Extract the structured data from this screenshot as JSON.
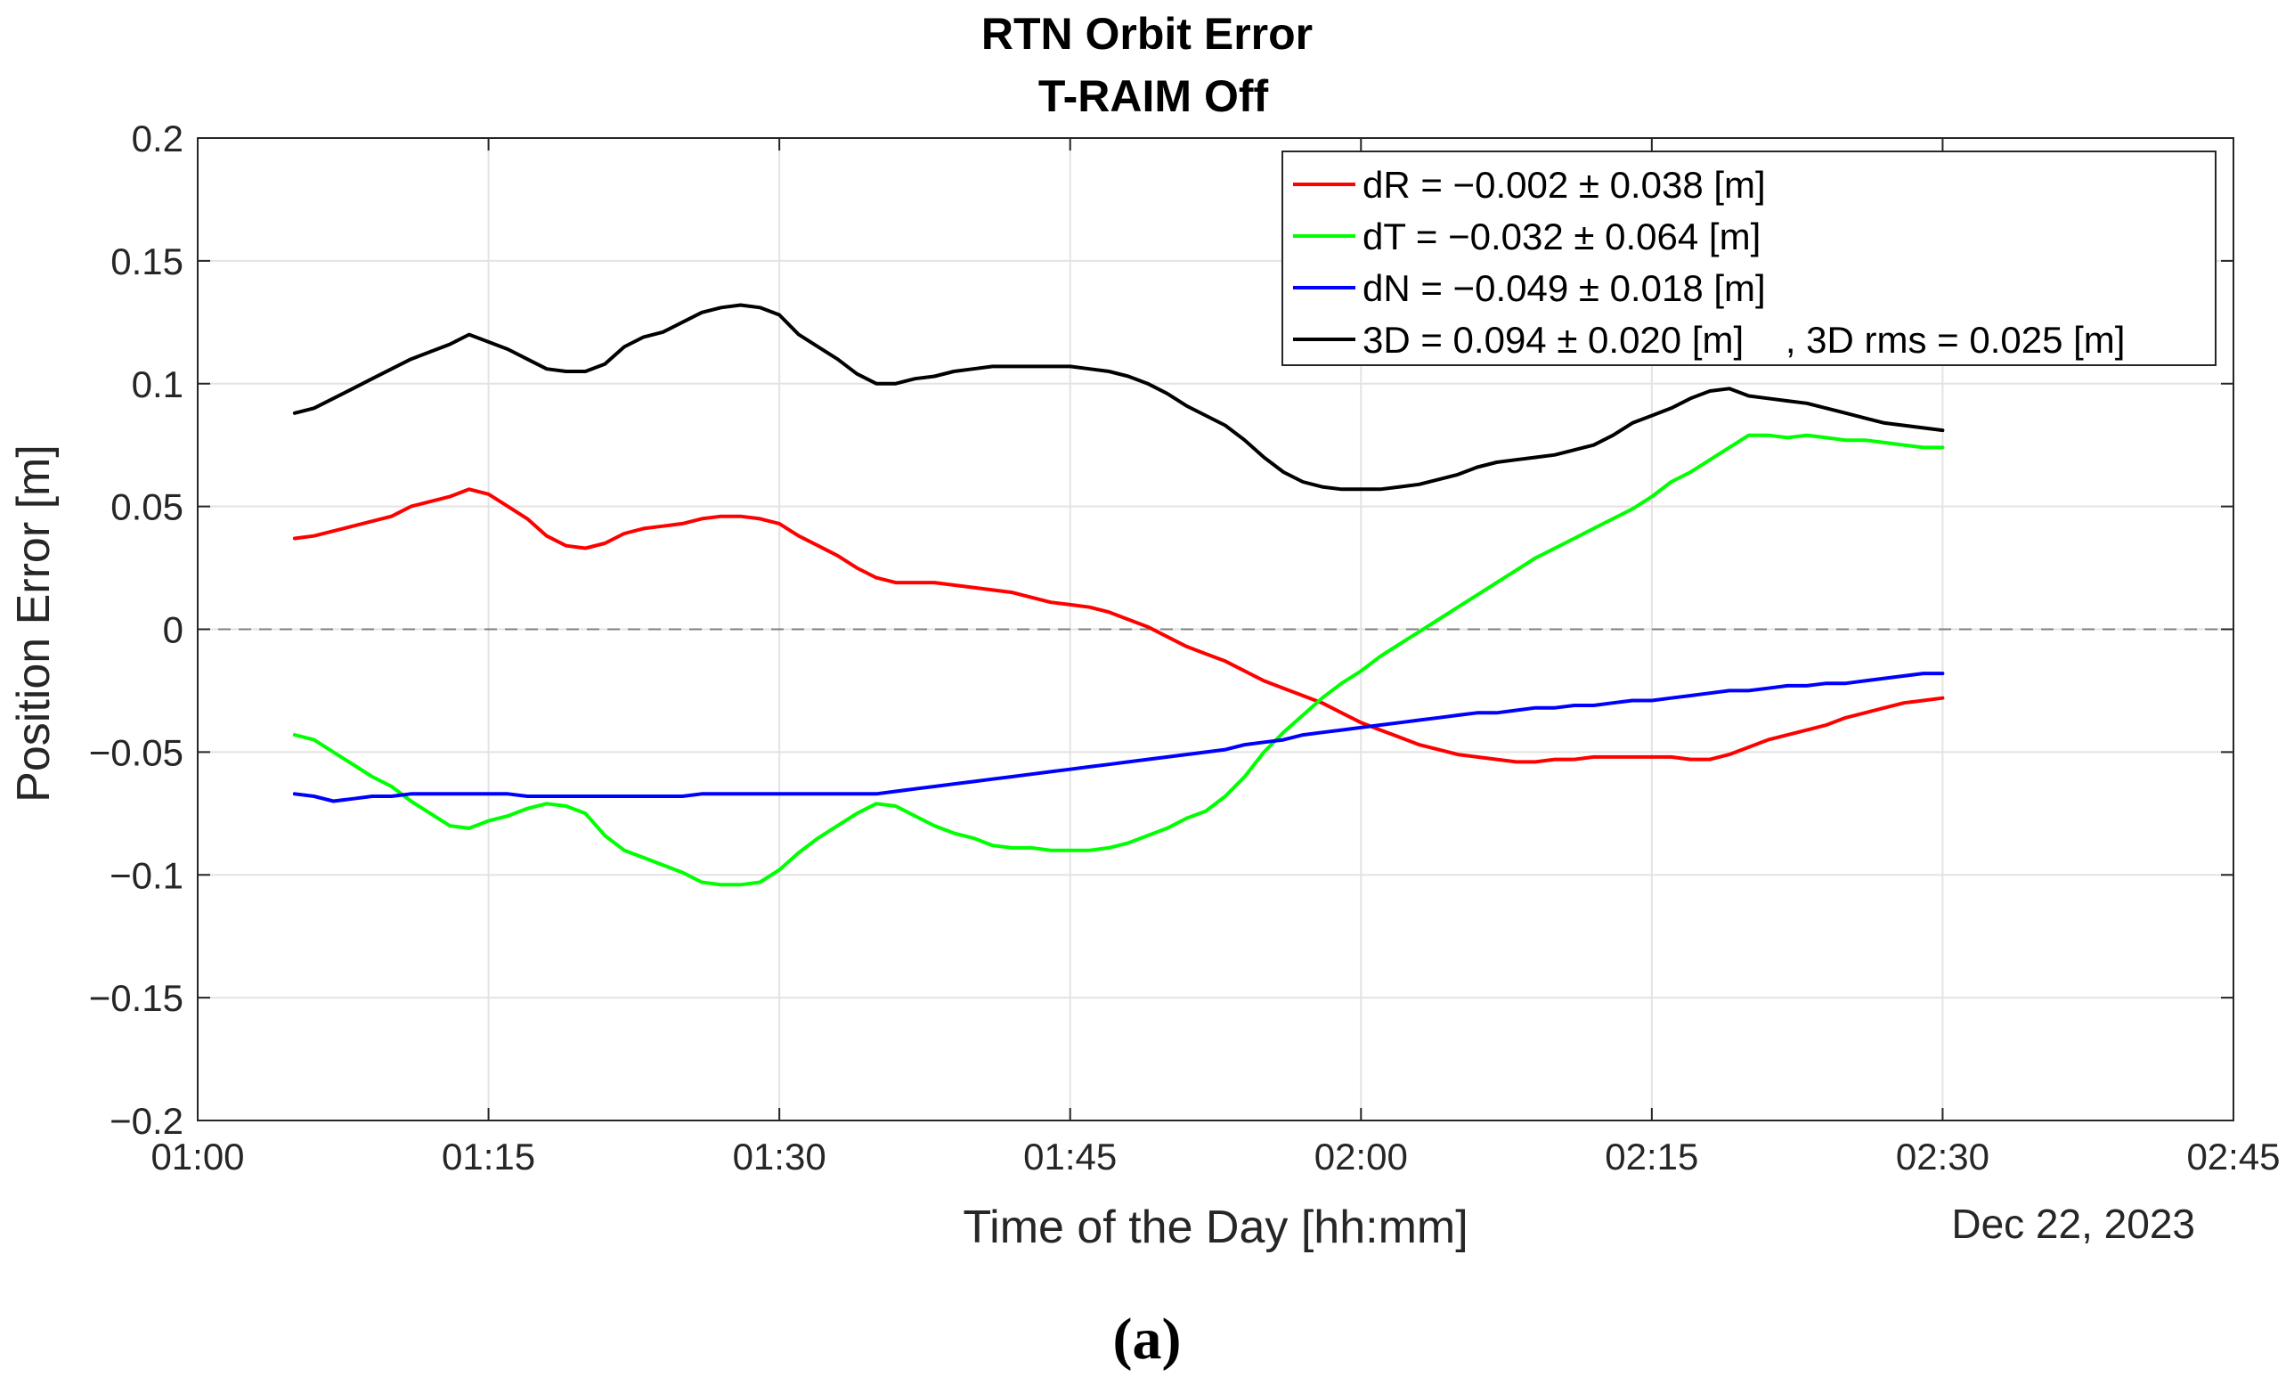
{
  "chart_data": {
    "type": "line",
    "title": "RTN Orbit Error",
    "subtitle": "T-RAIM Off",
    "xlabel": "Time of the Day [hh:mm]",
    "ylabel": "Position Error [m]",
    "date_label": "Dec 22, 2023",
    "caption": "(a)",
    "xlim": [
      "01:00",
      "02:45"
    ],
    "ylim": [
      -0.2,
      0.2
    ],
    "x_ticks": [
      "01:00",
      "01:15",
      "01:30",
      "01:45",
      "02:00",
      "02:15",
      "02:30",
      "02:45"
    ],
    "y_ticks": [
      "−0.2",
      "−0.15",
      "−0.1",
      "−0.05",
      "0",
      "0.05",
      "0.1",
      "0.15",
      "0.2"
    ],
    "y_tick_values": [
      -0.2,
      -0.15,
      -0.1,
      -0.05,
      0,
      0.05,
      0.1,
      0.15,
      0.2
    ],
    "grid": true,
    "zero_line": "dashed",
    "legend_position": "top-right",
    "x": [
      "01:05",
      "01:06",
      "01:07",
      "01:08",
      "01:09",
      "01:10",
      "01:11",
      "01:12",
      "01:13",
      "01:14",
      "01:15",
      "01:16",
      "01:17",
      "01:18",
      "01:19",
      "01:20",
      "01:21",
      "01:22",
      "01:23",
      "01:24",
      "01:25",
      "01:26",
      "01:27",
      "01:28",
      "01:29",
      "01:30",
      "01:31",
      "01:32",
      "01:33",
      "01:34",
      "01:35",
      "01:36",
      "01:37",
      "01:38",
      "01:39",
      "01:40",
      "01:41",
      "01:42",
      "01:43",
      "01:44",
      "01:45",
      "01:46",
      "01:47",
      "01:48",
      "01:49",
      "01:50",
      "01:51",
      "01:52",
      "01:53",
      "01:54",
      "01:55",
      "01:56",
      "01:57",
      "01:58",
      "01:59",
      "02:00",
      "02:01",
      "02:02",
      "02:03",
      "02:04",
      "02:05",
      "02:06",
      "02:07",
      "02:08",
      "02:09",
      "02:10",
      "02:11",
      "02:12",
      "02:13",
      "02:14",
      "02:15",
      "02:16",
      "02:17",
      "02:18",
      "02:19",
      "02:20",
      "02:21",
      "02:22",
      "02:23",
      "02:24",
      "02:25",
      "02:26",
      "02:27",
      "02:28",
      "02:29",
      "02:30"
    ],
    "series": [
      {
        "name": "dR = −0.002 ± 0.038 [m]",
        "color": "#ff0000",
        "values": [
          0.037,
          0.038,
          0.04,
          0.042,
          0.044,
          0.046,
          0.05,
          0.052,
          0.054,
          0.057,
          0.055,
          0.05,
          0.045,
          0.038,
          0.034,
          0.033,
          0.035,
          0.039,
          0.041,
          0.042,
          0.043,
          0.045,
          0.046,
          0.046,
          0.045,
          0.043,
          0.038,
          0.034,
          0.03,
          0.025,
          0.021,
          0.019,
          0.019,
          0.019,
          0.018,
          0.017,
          0.016,
          0.015,
          0.013,
          0.011,
          0.01,
          0.009,
          0.007,
          0.004,
          0.001,
          -0.003,
          -0.007,
          -0.01,
          -0.013,
          -0.017,
          -0.021,
          -0.024,
          -0.027,
          -0.03,
          -0.034,
          -0.038,
          -0.041,
          -0.044,
          -0.047,
          -0.049,
          -0.051,
          -0.052,
          -0.053,
          -0.054,
          -0.054,
          -0.053,
          -0.053,
          -0.052,
          -0.052,
          -0.052,
          -0.052,
          -0.052,
          -0.053,
          -0.053,
          -0.051,
          -0.048,
          -0.045,
          -0.043,
          -0.041,
          -0.039,
          -0.036,
          -0.034,
          -0.032,
          -0.03,
          -0.029,
          -0.028
        ]
      },
      {
        "name": "dT = −0.032 ± 0.064 [m]",
        "color": "#00ff00",
        "values": [
          -0.043,
          -0.045,
          -0.05,
          -0.055,
          -0.06,
          -0.064,
          -0.07,
          -0.075,
          -0.08,
          -0.081,
          -0.078,
          -0.076,
          -0.073,
          -0.071,
          -0.072,
          -0.075,
          -0.084,
          -0.09,
          -0.093,
          -0.096,
          -0.099,
          -0.103,
          -0.104,
          -0.104,
          -0.103,
          -0.098,
          -0.091,
          -0.085,
          -0.08,
          -0.075,
          -0.071,
          -0.072,
          -0.076,
          -0.08,
          -0.083,
          -0.085,
          -0.088,
          -0.089,
          -0.089,
          -0.09,
          -0.09,
          -0.09,
          -0.089,
          -0.087,
          -0.084,
          -0.081,
          -0.077,
          -0.074,
          -0.068,
          -0.06,
          -0.05,
          -0.042,
          -0.035,
          -0.028,
          -0.022,
          -0.017,
          -0.011,
          -0.006,
          -0.001,
          0.004,
          0.009,
          0.014,
          0.019,
          0.024,
          0.029,
          0.033,
          0.037,
          0.041,
          0.045,
          0.049,
          0.054,
          0.06,
          0.064,
          0.069,
          0.074,
          0.079,
          0.079,
          0.078,
          0.079,
          0.078,
          0.077,
          0.077,
          0.076,
          0.075,
          0.074,
          0.074
        ]
      },
      {
        "name": "dN = −0.049 ± 0.018 [m]",
        "color": "#0000ff",
        "values": [
          -0.067,
          -0.068,
          -0.07,
          -0.069,
          -0.068,
          -0.068,
          -0.067,
          -0.067,
          -0.067,
          -0.067,
          -0.067,
          -0.067,
          -0.068,
          -0.068,
          -0.068,
          -0.068,
          -0.068,
          -0.068,
          -0.068,
          -0.068,
          -0.068,
          -0.067,
          -0.067,
          -0.067,
          -0.067,
          -0.067,
          -0.067,
          -0.067,
          -0.067,
          -0.067,
          -0.067,
          -0.066,
          -0.065,
          -0.064,
          -0.063,
          -0.062,
          -0.061,
          -0.06,
          -0.059,
          -0.058,
          -0.057,
          -0.056,
          -0.055,
          -0.054,
          -0.053,
          -0.052,
          -0.051,
          -0.05,
          -0.049,
          -0.047,
          -0.046,
          -0.045,
          -0.043,
          -0.042,
          -0.041,
          -0.04,
          -0.039,
          -0.038,
          -0.037,
          -0.036,
          -0.035,
          -0.034,
          -0.034,
          -0.033,
          -0.032,
          -0.032,
          -0.031,
          -0.031,
          -0.03,
          -0.029,
          -0.029,
          -0.028,
          -0.027,
          -0.026,
          -0.025,
          -0.025,
          -0.024,
          -0.023,
          -0.023,
          -0.022,
          -0.022,
          -0.021,
          -0.02,
          -0.019,
          -0.018,
          -0.018
        ]
      },
      {
        "name": "3D = 0.094 ± 0.020 [m]    , 3D rms = 0.025 [m]",
        "color": "#000000",
        "values": [
          0.088,
          0.09,
          0.094,
          0.098,
          0.102,
          0.106,
          0.11,
          0.113,
          0.116,
          0.12,
          0.117,
          0.114,
          0.11,
          0.106,
          0.105,
          0.105,
          0.108,
          0.115,
          0.119,
          0.121,
          0.125,
          0.129,
          0.131,
          0.132,
          0.131,
          0.128,
          0.12,
          0.115,
          0.11,
          0.104,
          0.1,
          0.1,
          0.102,
          0.103,
          0.105,
          0.106,
          0.107,
          0.107,
          0.107,
          0.107,
          0.107,
          0.106,
          0.105,
          0.103,
          0.1,
          0.096,
          0.091,
          0.087,
          0.083,
          0.077,
          0.07,
          0.064,
          0.06,
          0.058,
          0.057,
          0.057,
          0.057,
          0.058,
          0.059,
          0.061,
          0.063,
          0.066,
          0.068,
          0.069,
          0.07,
          0.071,
          0.073,
          0.075,
          0.079,
          0.084,
          0.087,
          0.09,
          0.094,
          0.097,
          0.098,
          0.095,
          0.094,
          0.093,
          0.092,
          0.09,
          0.088,
          0.086,
          0.084,
          0.083,
          0.082,
          0.081
        ]
      }
    ]
  }
}
